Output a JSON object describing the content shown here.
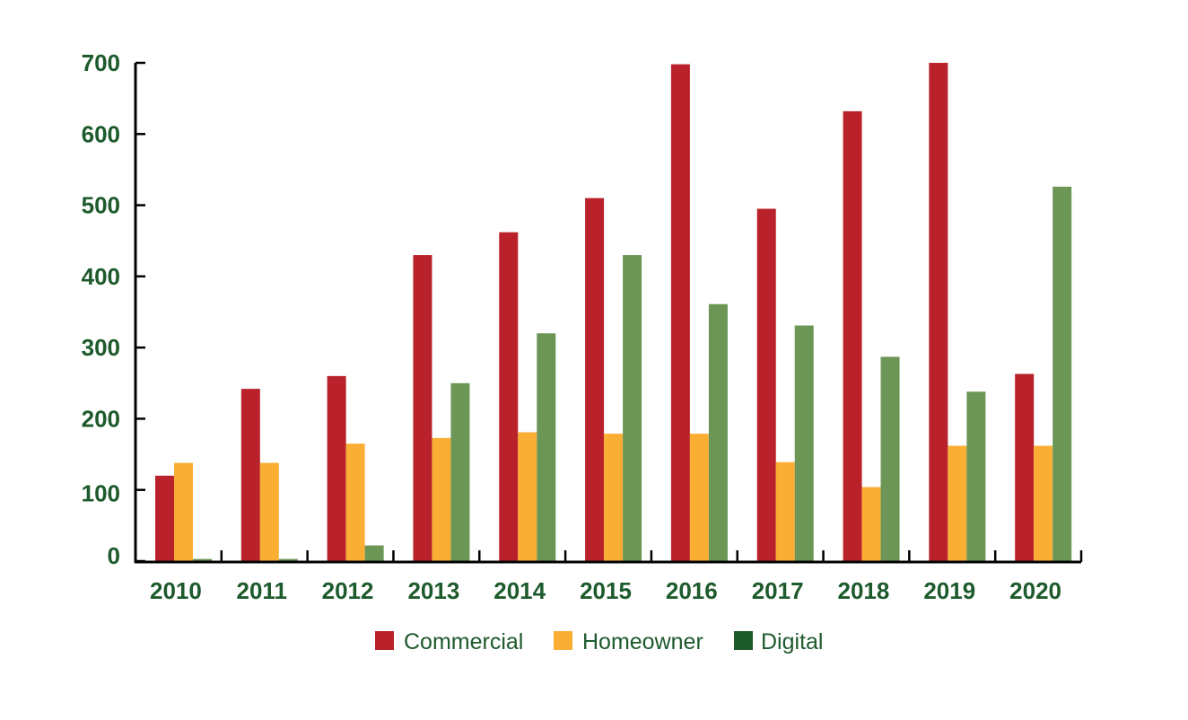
{
  "chart_data": {
    "type": "bar",
    "categories": [
      "2010",
      "2011",
      "2012",
      "2013",
      "2014",
      "2015",
      "2016",
      "2017",
      "2018",
      "2019",
      "2020"
    ],
    "series": [
      {
        "name": "Commercial",
        "color": "#b9222b",
        "values": [
          120,
          242,
          260,
          430,
          462,
          510,
          698,
          495,
          632,
          700,
          263
        ]
      },
      {
        "name": "Homeowner",
        "color": "#fbae34",
        "values": [
          138,
          138,
          165,
          173,
          181,
          179,
          179,
          139,
          104,
          162,
          162
        ]
      },
      {
        "name": "Digital",
        "color": "#6b9656",
        "legend_color": "#1d5a2c",
        "values": [
          3,
          3,
          22,
          250,
          320,
          430,
          361,
          331,
          287,
          238,
          526
        ]
      }
    ],
    "y_ticks": [
      "0",
      "100",
      "200",
      "300",
      "400",
      "500",
      "600",
      "700"
    ],
    "ylim": [
      0,
      700
    ],
    "xlabel": "",
    "ylabel": "",
    "title": "",
    "grid": false,
    "legend_position": "bottom-center"
  }
}
